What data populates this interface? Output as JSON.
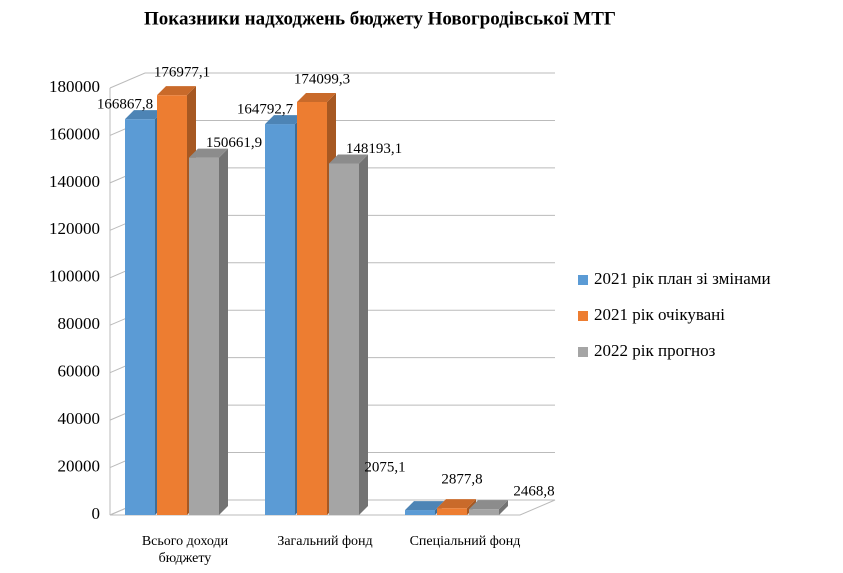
{
  "chart_data": {
    "type": "bar3d",
    "title": "Показники  надходжень бюджету Новогродівської  МТГ",
    "categories": [
      "Всього доходи бюджету",
      "Загальний фонд",
      "Спеціальний фонд"
    ],
    "series": [
      {
        "name": "2021 рік план зі змінами",
        "color": "#5b9bd5",
        "values": [
          166867.8,
          164792.7,
          2075.1
        ],
        "value_labels": [
          "166867,8",
          "164792,7",
          "2075,1"
        ]
      },
      {
        "name": "2021 рік очікувані",
        "color": "#ed7d31",
        "values": [
          176977.1,
          174099.3,
          2877.8
        ],
        "value_labels": [
          "176977,1",
          "174099,3",
          "2877,8"
        ]
      },
      {
        "name": "2022 рік прогноз",
        "color": "#a5a5a5",
        "values": [
          150661.9,
          148193.1,
          2468.8
        ],
        "value_labels": [
          "150661,9",
          "148193,1",
          "2468,8"
        ]
      }
    ],
    "ylim": [
      0,
      180000
    ],
    "yticks": [
      0,
      20000,
      40000,
      60000,
      80000,
      100000,
      120000,
      140000,
      160000,
      180000
    ],
    "grid": true,
    "legend": "right"
  }
}
